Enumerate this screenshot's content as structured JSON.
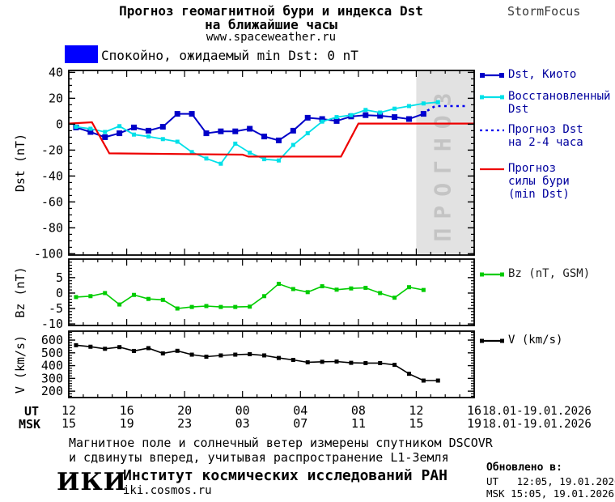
{
  "header": {
    "title1": "Прогноз геомагнитной бури и индекса Dst",
    "title2": "на ближайшие часы",
    "url": "www.spaceweather.ru",
    "brand": "StormFocus"
  },
  "status": {
    "label": "Спокойно, ожидаемый min Dst: 0 nT",
    "box_color": "#0000FF"
  },
  "legend": {
    "kyoto": {
      "label": "Dst, Киото"
    },
    "restored": {
      "line1": "Восстановленный",
      "line2": "Dst"
    },
    "forecast": {
      "line1": "Прогноз Dst",
      "line2": "на 2-4 часа"
    },
    "storm": {
      "line1": "Прогноз",
      "line2": "силы бури",
      "line3": "(min Dst)"
    },
    "bz": {
      "label": "Bz (nT, GSM)"
    },
    "v": {
      "label": "V (km/s)"
    }
  },
  "colors": {
    "kyoto": "#0000C8",
    "restored": "#00E0E8",
    "forecast_dst": "#0000F0",
    "storm": "#EE0000",
    "bz": "#00CC00",
    "v": "#000000",
    "quiet_box": "#0000FF",
    "forecast_region": "#E2E2E2",
    "forecast_text": "#C4C4C4",
    "legend_text": "#00009E"
  },
  "chart_data": [
    {
      "type": "line",
      "name": "dst",
      "ylabel": "Dst (nT)",
      "ylim": [
        -101,
        41.5
      ],
      "ytick_labels": [
        40,
        20,
        0,
        -20,
        -40,
        -60,
        -80,
        -100
      ],
      "ytick_minor": 5,
      "xlim": [
        0,
        28
      ],
      "xtick_major": 4,
      "xtick_minor": 1,
      "forecast_region": {
        "x_from": 24,
        "x_to": 28,
        "label": "ПРОГНОЗ"
      },
      "series": [
        {
          "name": "dst-kyoto",
          "color_key": "kyoto",
          "marker": 7,
          "width": 2,
          "x_start": 0.5,
          "x_step": 1,
          "values": [
            -2.5,
            -6,
            -10,
            -7,
            -2.5,
            -5,
            -2,
            8,
            8,
            -7,
            -5.5,
            -5.5,
            -3.5,
            -9.5,
            -12.5,
            -5,
            5,
            4,
            2.5,
            6,
            7,
            6.5,
            5.5,
            4,
            8
          ]
        },
        {
          "name": "dst-restored",
          "color_key": "restored",
          "marker": 5,
          "width": 1.8,
          "x_start": 0.5,
          "x_step": 1,
          "values": [
            -2,
            -3.5,
            -6,
            -1.5,
            -8,
            -9.5,
            -11.5,
            -13.5,
            -21.5,
            -26.5,
            -30.5,
            -15,
            -22,
            -27,
            -28,
            -16,
            -7,
            2,
            5.5,
            7,
            11,
            9,
            12,
            14,
            16,
            17
          ]
        },
        {
          "name": "dst-forecast-2-4h",
          "color_key": "forecast_dst",
          "width": 2.6,
          "dash": "3 4.5",
          "points": [
            [
              24.4,
              8
            ],
            [
              25.3,
              14
            ],
            [
              27.6,
              14
            ]
          ]
        },
        {
          "name": "storm-forecast",
          "color_key": "storm",
          "width": 2.2,
          "points": [
            [
              0,
              0.5
            ],
            [
              1.6,
              1.5
            ],
            [
              2.8,
              -22.5
            ],
            [
              12,
              -23.5
            ],
            [
              12.4,
              -25
            ],
            [
              18.8,
              -25
            ],
            [
              20,
              0.5
            ],
            [
              28,
              0.5
            ]
          ]
        }
      ]
    },
    {
      "type": "line",
      "name": "bz",
      "ylabel": "Bz (nT)",
      "ylim": [
        -10.5,
        11
      ],
      "ytick_labels": [
        5,
        0,
        -5,
        -10
      ],
      "ytick_minor": 1,
      "xlim": [
        0,
        28
      ],
      "xtick_major": 4,
      "xtick_minor": 1,
      "series": [
        {
          "name": "bz",
          "color_key": "bz",
          "marker": 5,
          "width": 1.6,
          "x_start": 0.5,
          "x_step": 1,
          "values": [
            -1.3,
            -1,
            0,
            -3.7,
            -0.6,
            -1.9,
            -2.2,
            -5,
            -4.5,
            -4.2,
            -4.5,
            -4.5,
            -4.4,
            -1,
            3,
            1.3,
            0.3,
            2.2,
            1.1,
            1.5,
            1.7,
            0,
            -1.5,
            1.9,
            1
          ]
        }
      ]
    },
    {
      "type": "line",
      "name": "v",
      "ylabel": "V (km/s)",
      "ylim": [
        150,
        670
      ],
      "ytick_labels": [
        600,
        500,
        400,
        300,
        200
      ],
      "ytick_minor": 20,
      "xlim": [
        0,
        28
      ],
      "xtick_major": 4,
      "xtick_minor": 1,
      "series": [
        {
          "name": "v",
          "color_key": "v",
          "marker": 5,
          "width": 1.6,
          "x_start": 0.5,
          "x_step": 1,
          "values": [
            560,
            548,
            532,
            545,
            515,
            537,
            496,
            516,
            486,
            470,
            480,
            486,
            490,
            480,
            460,
            445,
            426,
            430,
            432,
            422,
            420,
            420,
            406,
            336,
            283,
            283
          ]
        }
      ]
    }
  ],
  "xaxis": {
    "ut_label": "UT",
    "msk_label": "MSK",
    "ut": [
      "12",
      "16",
      "20",
      "00",
      "04",
      "08",
      "12",
      "16"
    ],
    "msk": [
      "15",
      "19",
      "23",
      "03",
      "07",
      "11",
      "15",
      "19"
    ],
    "date": "18.01-19.01.2026"
  },
  "footer": {
    "line1": "Магнитное поле и солнечный ветер измерены спутником DSCOVR",
    "line2": "и сдвинуты вперед, учитывая распространение L1-Земля",
    "logo": "ИКИ",
    "institute": "Институт космических исследований РАН",
    "site": "iki.cosmos.ru"
  },
  "updated": {
    "title": "Обновлено в:",
    "ut": "UT   12:05, 19.01.2026",
    "msk": "MSK 15:05, 19.01.2026"
  }
}
